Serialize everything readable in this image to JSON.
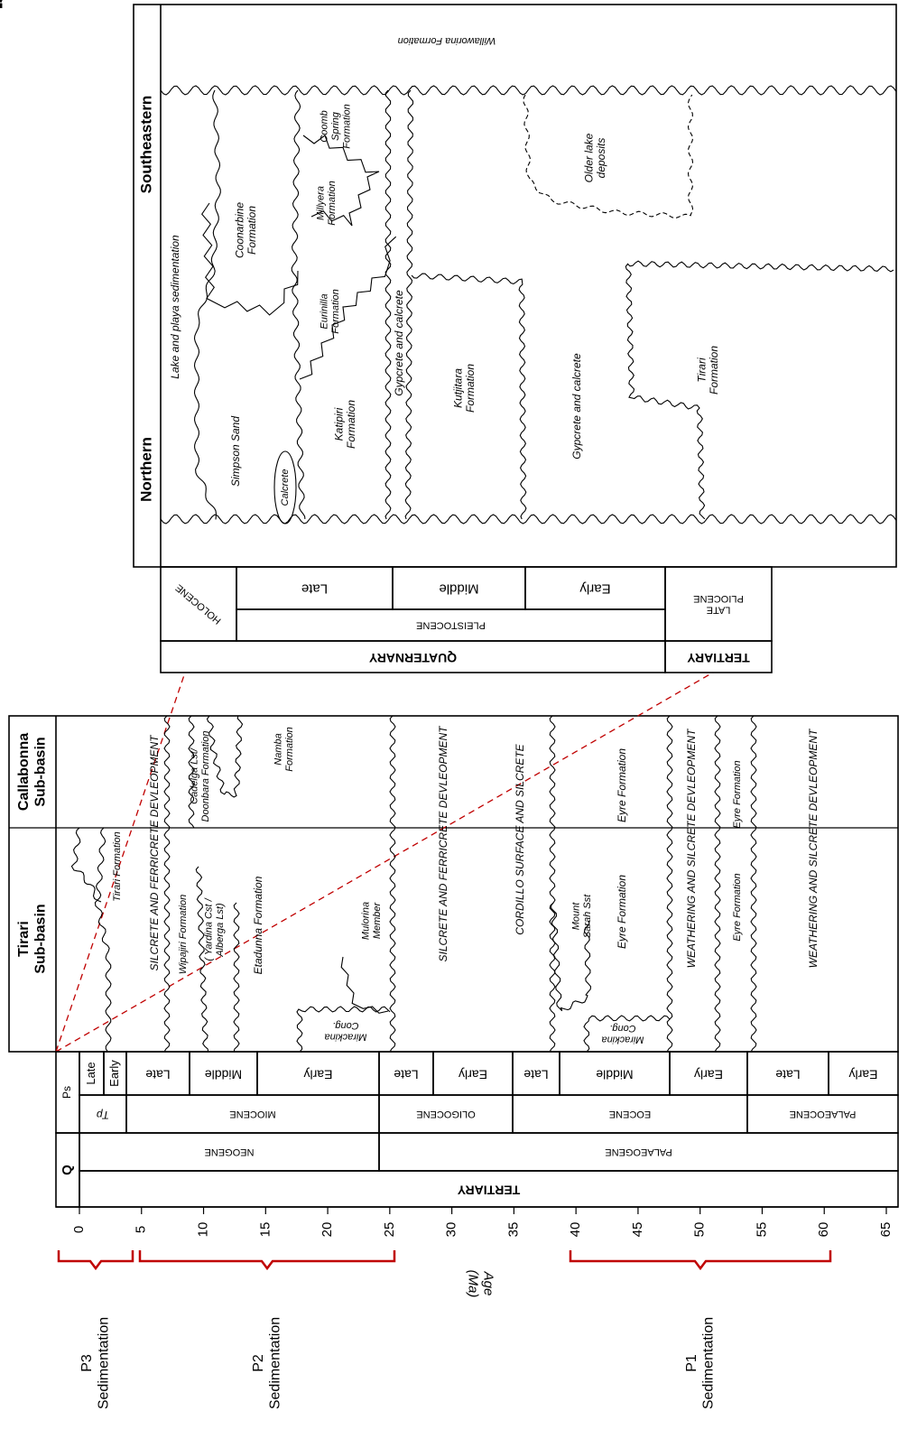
{
  "upper_panel": {
    "regions": [
      "Southeastern",
      "Northern"
    ],
    "units": [
      [
        "Willaworina Formation"
      ],
      [
        "Lake and playa sedimentation"
      ],
      [
        "Coonarbine",
        "Formation"
      ],
      [
        "Simpson Sand"
      ],
      [
        "Calcrete"
      ],
      [
        "Coomb",
        "Spring",
        "Formation"
      ],
      [
        "Millyera",
        "Formation"
      ],
      [
        "Eurinilla",
        "Formation"
      ],
      [
        "Katipiri",
        "Formation"
      ],
      [
        "Gypcrete and calcrete"
      ],
      [
        "Kutjitara",
        "Formation"
      ],
      [
        "Older lake",
        "deposits"
      ],
      [
        "Gypcrete and calcrete"
      ],
      [
        "Tirari",
        "Formation"
      ]
    ],
    "timescale_cells": [
      [
        "HOLOCENE"
      ],
      [
        "Late"
      ],
      [
        "Middle"
      ],
      [
        "Early"
      ],
      [
        "PLEISTOCENE"
      ],
      [
        "LATE",
        "PLIOCENE"
      ],
      [
        "QUATERNARY"
      ],
      [
        "TERTIARY"
      ]
    ]
  },
  "lower_panel": {
    "basins": [
      [
        "Callabonna",
        "Sub-basin"
      ],
      [
        "Tirari",
        "Sub-basin"
      ]
    ],
    "units": [
      [
        "Tirari Formation"
      ],
      [
        "SILCRETE AND FERRICRETE DEVLEOPMENT"
      ],
      [
        "Wipajiri Formation"
      ],
      [
        "( Yardina Cst /",
        "Alberga Lst)"
      ],
      [
        "Etadunna Formation"
      ],
      [
        "Mulorina",
        "Member"
      ],
      [
        "Mirackina",
        "Cong."
      ],
      [
        "SILCRETE AND FERRICRETE DEVLEOPMENT"
      ],
      [
        "CORDILLO SURFACE AND SILCRETE"
      ],
      [
        "Mount",
        "Sarah Sst"
      ],
      [
        "Eyre Formation"
      ],
      [
        "Mirackina",
        "Cong."
      ],
      [
        "WEATHERING AND SILCRETE DEVLEOPMENT"
      ],
      [
        "Eyre Formation"
      ],
      [
        "WEATHERING AND SILCRETE DEVLEOPMENT"
      ],
      [
        "Cadelga Lst/",
        "Doonbara Formation"
      ],
      [
        "Namba",
        "Formation"
      ],
      [
        "Eyre Formation"
      ],
      [
        "Eyre Formation"
      ]
    ],
    "timescale_cells": [
      [
        "Ps"
      ],
      [
        "Late"
      ],
      [
        "Early"
      ],
      [
        "Late"
      ],
      [
        "Middle"
      ],
      [
        "Early"
      ],
      [
        "Late"
      ],
      [
        "Early"
      ],
      [
        "Late"
      ],
      [
        "Middle"
      ],
      [
        "Early"
      ],
      [
        "Late"
      ],
      [
        "Early"
      ],
      [
        "Tp"
      ],
      [
        "MIOCENE"
      ],
      [
        "OLIGOCENE"
      ],
      [
        "EOCENE"
      ],
      [
        "PALAEOCENE"
      ],
      [
        "Q"
      ],
      [
        "NEOGENE"
      ],
      [
        "PALAEOGENE"
      ],
      [
        "TERTIARY"
      ]
    ]
  },
  "question_mark": "?",
  "age_axis": {
    "label": [
      "Age",
      "(Ma)"
    ],
    "ticks": [
      0,
      5,
      10,
      15,
      20,
      25,
      30,
      35,
      40,
      45,
      50,
      55,
      60,
      65
    ]
  },
  "sedimentation_phases": [
    [
      "P3",
      "Sedimentation"
    ],
    [
      "P2",
      "Sedimentation"
    ],
    [
      "P1",
      "Sedimentation"
    ]
  ]
}
